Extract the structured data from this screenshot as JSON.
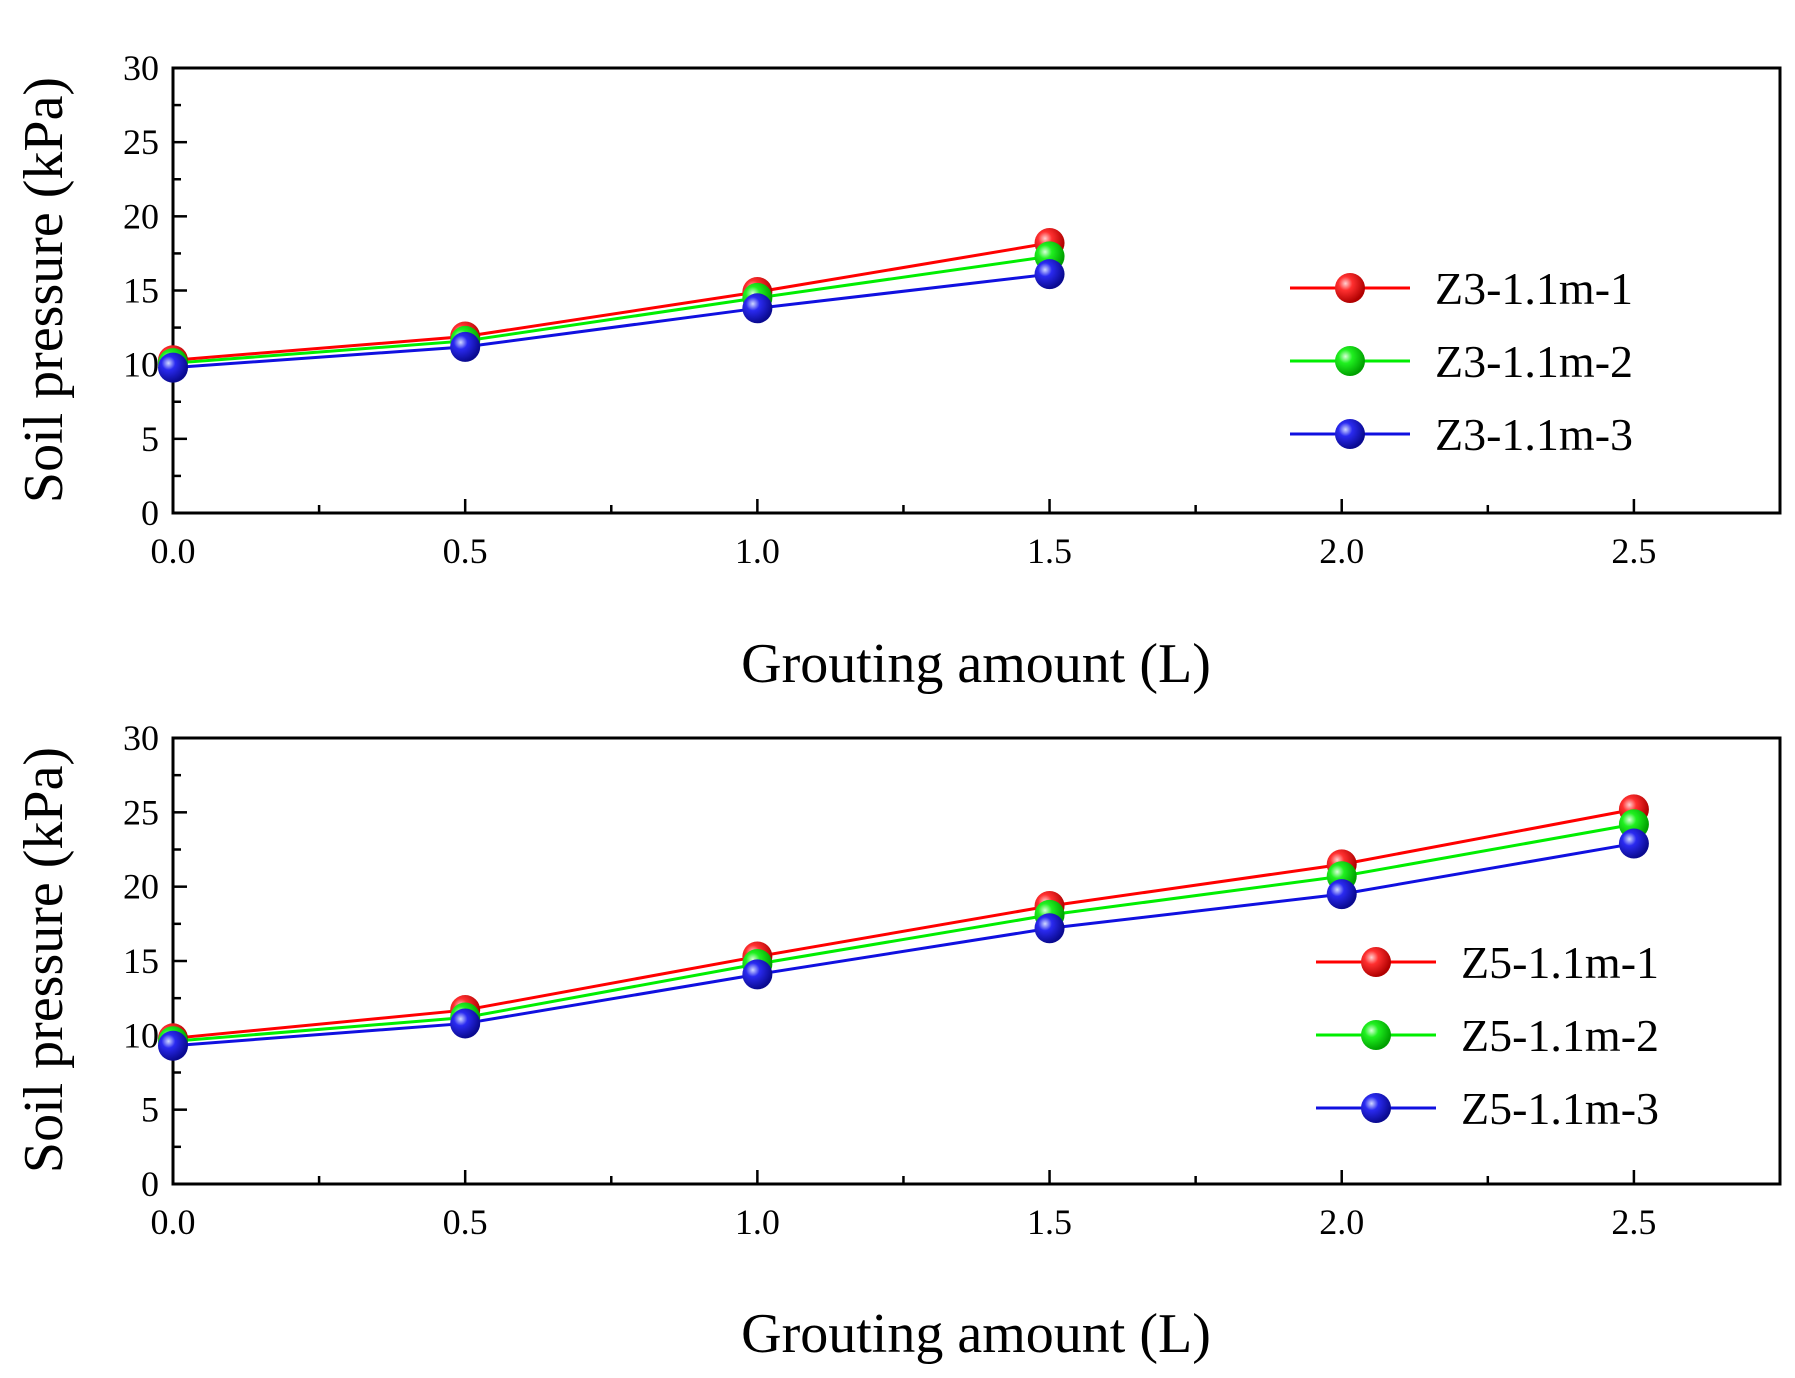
{
  "chart_data": [
    {
      "type": "line",
      "xlabel": "Grouting amount (L)",
      "ylabel": "Soil pressure (kPa)",
      "xlim": [
        0,
        2.75
      ],
      "ylim": [
        0,
        30
      ],
      "xticks": [
        "0.0",
        "0.5",
        "1.0",
        "1.5",
        "2.0",
        "2.5"
      ],
      "yticks": [
        "0",
        "5",
        "10",
        "15",
        "20",
        "25",
        "30"
      ],
      "legend_position": "right",
      "x": [
        0,
        0.5,
        1.0,
        1.5
      ],
      "series": [
        {
          "name": "Z3-1.1m-1",
          "color": "#ff0000",
          "values": [
            10.3,
            11.9,
            14.9,
            18.2
          ]
        },
        {
          "name": "Z3-1.1m-2",
          "color": "#00ee00",
          "values": [
            10.1,
            11.6,
            14.5,
            17.3
          ]
        },
        {
          "name": "Z3-1.1m-3",
          "color": "#1010e0",
          "values": [
            9.8,
            11.2,
            13.8,
            16.1
          ]
        }
      ]
    },
    {
      "type": "line",
      "xlabel": "Grouting amount (L)",
      "ylabel": "Soil pressure (kPa)",
      "xlim": [
        0,
        2.75
      ],
      "ylim": [
        0,
        30
      ],
      "xticks": [
        "0.0",
        "0.5",
        "1.0",
        "1.5",
        "2.0",
        "2.5"
      ],
      "yticks": [
        "0",
        "5",
        "10",
        "15",
        "20",
        "25",
        "30"
      ],
      "legend_position": "right",
      "x": [
        0,
        0.5,
        1.0,
        1.5,
        2.0,
        2.5
      ],
      "series": [
        {
          "name": "Z5-1.1m-1",
          "color": "#ff0000",
          "values": [
            9.8,
            11.7,
            15.3,
            18.7,
            21.5,
            25.2
          ]
        },
        {
          "name": "Z5-1.1m-2",
          "color": "#00ee00",
          "values": [
            9.6,
            11.2,
            14.8,
            18.1,
            20.7,
            24.2
          ]
        },
        {
          "name": "Z5-1.1m-3",
          "color": "#1010e0",
          "values": [
            9.3,
            10.8,
            14.1,
            17.2,
            19.5,
            22.9
          ]
        }
      ]
    }
  ]
}
